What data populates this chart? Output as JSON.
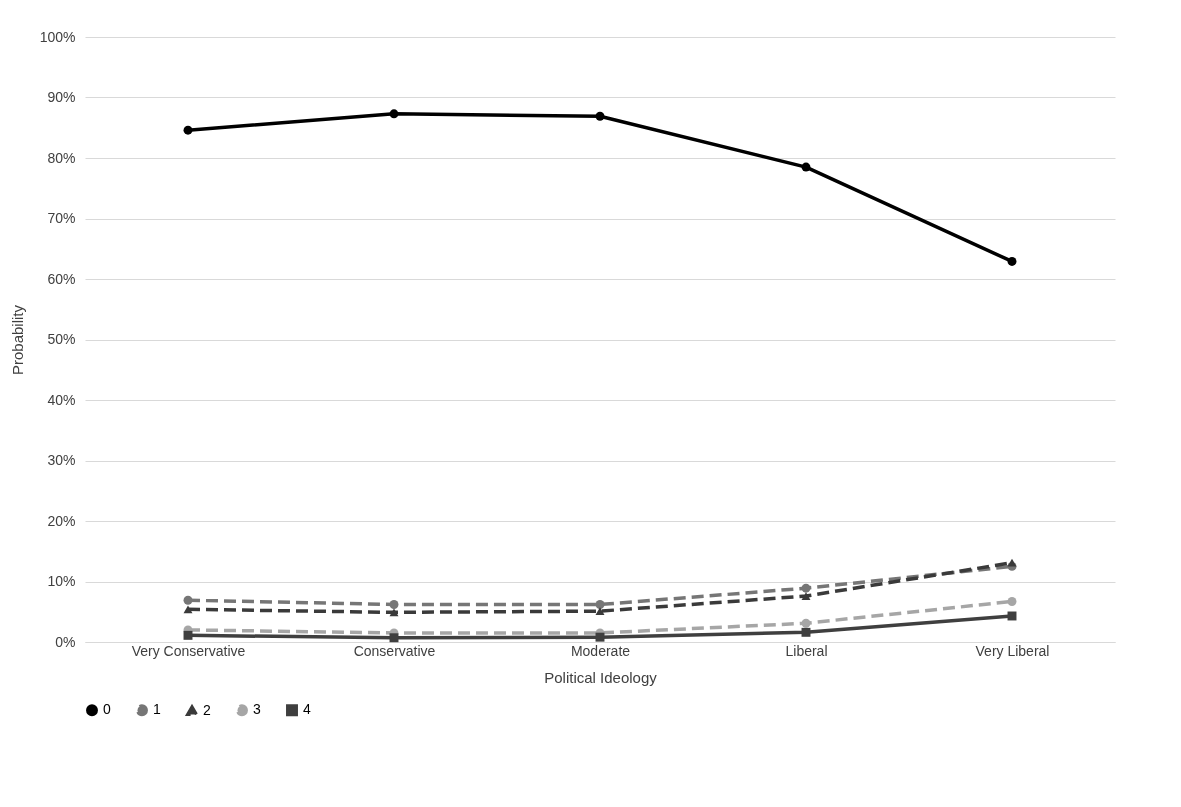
{
  "chart_data": {
    "type": "line",
    "xlabel": "Political Ideology",
    "ylabel": "Probability",
    "categories": [
      "Very Conservative",
      "Conservative",
      "Moderate",
      "Liberal",
      "Very Liberal"
    ],
    "series": [
      {
        "name": "0",
        "color": "#000000",
        "marker": "circle",
        "line_style": "solid",
        "values": [
          84.6,
          87.3,
          86.9,
          78.5,
          62.9
        ]
      },
      {
        "name": "1",
        "color": "#767676",
        "marker": "circle",
        "line_style": "dashed",
        "values": [
          6.9,
          6.2,
          6.2,
          8.9,
          12.5
        ]
      },
      {
        "name": "2",
        "color": "#3a3a3a",
        "marker": "triangle",
        "line_style": "dashed",
        "values": [
          5.4,
          4.9,
          5.1,
          7.6,
          13.1
        ]
      },
      {
        "name": "3",
        "color": "#a6a6a6",
        "marker": "circle",
        "line_style": "dashed",
        "values": [
          2.0,
          1.5,
          1.5,
          3.1,
          6.7
        ]
      },
      {
        "name": "4",
        "color": "#3f3f3f",
        "marker": "square",
        "line_style": "solid",
        "values": [
          1.1,
          0.7,
          0.8,
          1.6,
          4.3
        ]
      }
    ],
    "ylim": [
      0,
      100
    ],
    "yticks": [
      {
        "value": 0,
        "label": "0%"
      },
      {
        "value": 10,
        "label": "10%"
      },
      {
        "value": 20,
        "label": "20%"
      },
      {
        "value": 30,
        "label": "30%"
      },
      {
        "value": 40,
        "label": "40%"
      },
      {
        "value": 50,
        "label": "50%"
      },
      {
        "value": 60,
        "label": "60%"
      },
      {
        "value": 70,
        "label": "70%"
      },
      {
        "value": 80,
        "label": "80%"
      },
      {
        "value": 90,
        "label": "90%"
      },
      {
        "value": 100,
        "label": "100%"
      }
    ],
    "grid": "y",
    "legend": "bottom"
  }
}
